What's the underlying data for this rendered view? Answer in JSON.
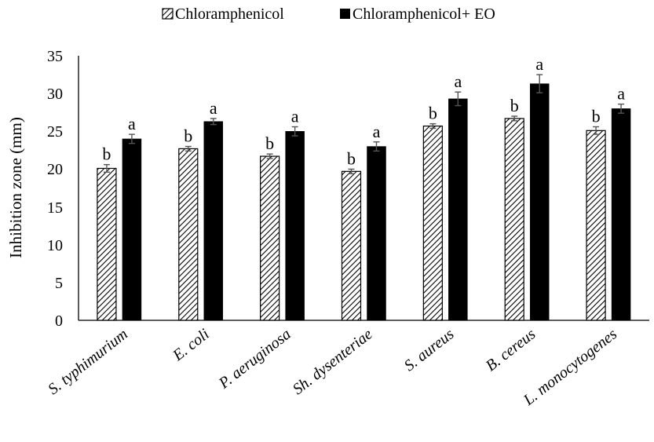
{
  "chart_data": {
    "type": "bar",
    "title": "",
    "xlabel": "",
    "ylabel": "Inhibition zone (mm)",
    "ylim": [
      0,
      35
    ],
    "yticks": [
      "0",
      "5",
      "10",
      "15",
      "20",
      "25",
      "30",
      "35"
    ],
    "grid": false,
    "legend_position": "top",
    "categories": [
      "S. typhimurium",
      "E. coli",
      "P. aeruginosa",
      "Sh. dysenteriae",
      "S. aureus",
      "B. cereus",
      "L. monocytogenes"
    ],
    "series": [
      {
        "name": "Chloramphenicol",
        "pattern": "hatched",
        "color": "#000000",
        "values": [
          20.1,
          22.7,
          21.7,
          19.7,
          25.7,
          26.7,
          25.1
        ],
        "errors": [
          0.5,
          0.3,
          0.3,
          0.3,
          0.3,
          0.3,
          0.5
        ],
        "letters": [
          "b",
          "b",
          "b",
          "b",
          "b",
          "b",
          "b"
        ]
      },
      {
        "name": "Chloramphenicol+ EO",
        "pattern": "solid",
        "color": "#000000",
        "values": [
          24.0,
          26.3,
          25.0,
          23.0,
          29.3,
          31.3,
          28.0
        ],
        "errors": [
          0.6,
          0.4,
          0.6,
          0.6,
          0.9,
          1.2,
          0.6
        ],
        "letters": [
          "a",
          "a",
          "a",
          "a",
          "a",
          "a",
          "a"
        ]
      }
    ]
  }
}
